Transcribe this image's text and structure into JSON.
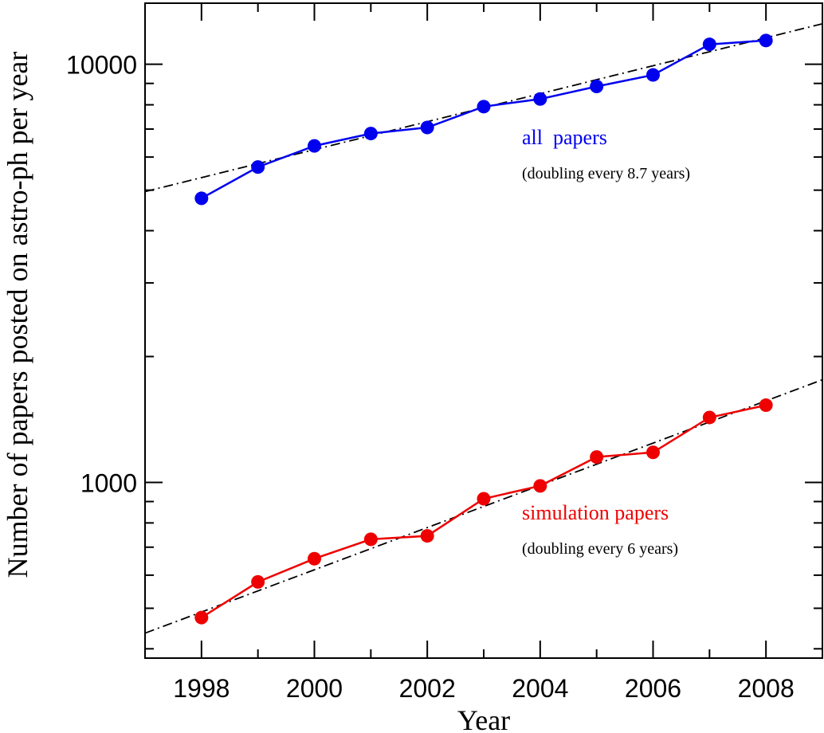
{
  "chart_data": {
    "type": "line",
    "xlabel": "Year",
    "ylabel": "Number of papers posted on astro-ph per year",
    "yscale": "log",
    "xlim": [
      1997,
      2009
    ],
    "ylim": [
      380,
      14000
    ],
    "x_ticks": [
      1998,
      2000,
      2002,
      2004,
      2006,
      2008
    ],
    "y_ticks": [
      1000,
      10000
    ],
    "grid": false,
    "series": [
      {
        "name": "all  papers",
        "note": "(doubling every 8.7 years)",
        "color": "#0000ee",
        "x": [
          1998,
          1999,
          2000,
          2001,
          2002,
          2003,
          2004,
          2005,
          2006,
          2007,
          2008
        ],
        "y": [
          4780,
          5680,
          6380,
          6830,
          7060,
          7920,
          8260,
          8850,
          9430,
          11160,
          11400
        ],
        "fit": {
          "x": [
            1997,
            2009
          ],
          "y": [
            4960,
            12500
          ]
        }
      },
      {
        "name": "simulation papers",
        "note": "(doubling every 6 years)",
        "color": "#ee0000",
        "x": [
          1998,
          1999,
          2000,
          2001,
          2002,
          2003,
          2004,
          2005,
          2006,
          2007,
          2008
        ],
        "y": [
          475,
          578,
          657,
          731,
          745,
          914,
          981,
          1150,
          1180,
          1430,
          1530
        ],
        "fit": {
          "x": [
            1997,
            2009
          ],
          "y": [
            436,
            1760
          ]
        }
      }
    ]
  }
}
